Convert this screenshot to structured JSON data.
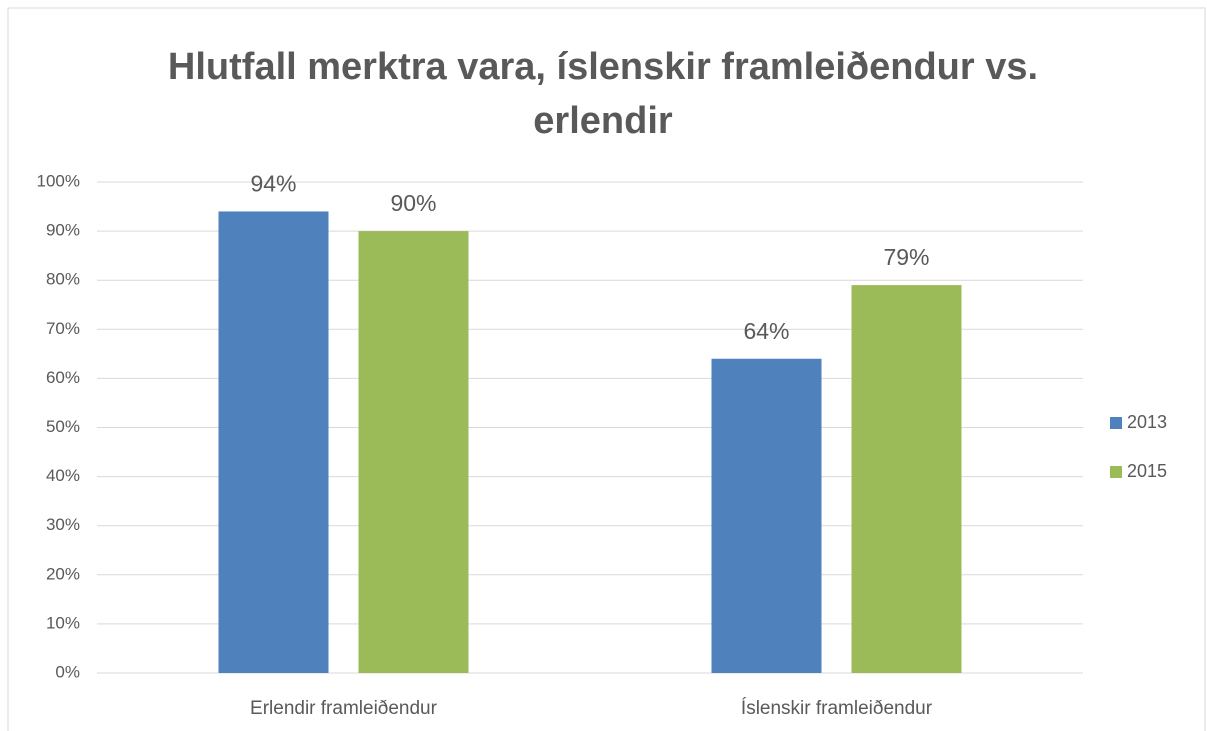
{
  "chart_data": {
    "type": "bar",
    "title": "Hlutfall merktra vara, íslenskir framleiðendur vs. erlendir",
    "categories": [
      "Erlendir framleiðendur",
      "Íslenskir framleiðendur"
    ],
    "series": [
      {
        "name": "2013",
        "color": "#4f81bd",
        "values": [
          94,
          64
        ],
        "value_labels": [
          "94%",
          "64%"
        ]
      },
      {
        "name": "2015",
        "color": "#9bbb59",
        "values": [
          90,
          79
        ],
        "value_labels": [
          "90%",
          "79%"
        ]
      }
    ],
    "ylim": [
      0,
      100
    ],
    "yticks": [
      {
        "value": 0,
        "label": "0%"
      },
      {
        "value": 10,
        "label": "10%"
      },
      {
        "value": 20,
        "label": "20%"
      },
      {
        "value": 30,
        "label": "30%"
      },
      {
        "value": 40,
        "label": "40%"
      },
      {
        "value": 50,
        "label": "50%"
      },
      {
        "value": 60,
        "label": "60%"
      },
      {
        "value": 70,
        "label": "70%"
      },
      {
        "value": 80,
        "label": "80%"
      },
      {
        "value": 90,
        "label": "90%"
      },
      {
        "value": 100,
        "label": "100%"
      }
    ],
    "grid": true,
    "legend": "right"
  }
}
